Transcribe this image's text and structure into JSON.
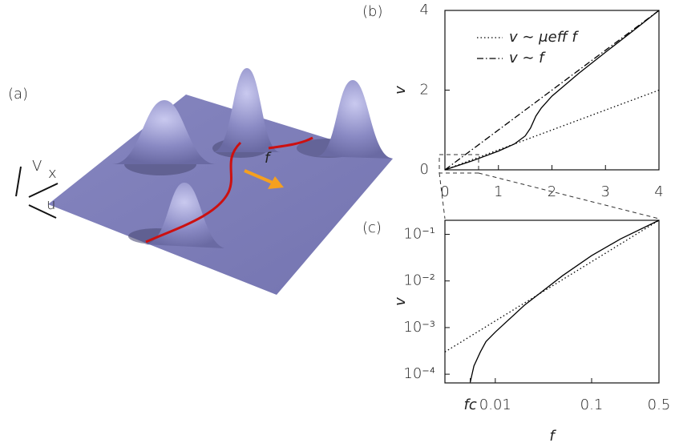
{
  "illustration": {
    "panel_label": "(a)",
    "axis_labels": [
      "V",
      "x",
      "u"
    ],
    "force_label": "f"
  },
  "chart_data": [
    {
      "type": "line",
      "panel_label": "(b)",
      "y_label": "v",
      "xlim": [
        0,
        4
      ],
      "ylim": [
        0,
        4
      ],
      "xticks": [
        0,
        1,
        2,
        3,
        4
      ],
      "yticks": [
        0,
        2,
        4
      ],
      "log_x": false,
      "log_y": false,
      "legend": "upper left",
      "series": [
        {
          "name": "v ∼ μeff f",
          "color": "#000000",
          "style": "dotted",
          "x": [
            0,
            4
          ],
          "values": [
            0,
            2
          ]
        },
        {
          "name": "v ∼ f",
          "color": "#000000",
          "style": "dashdot",
          "x": [
            0,
            4
          ],
          "values": [
            0,
            4
          ]
        },
        {
          "color": "#000000",
          "style": "solid",
          "x": [
            0,
            0.5,
            1,
            1.3,
            1.5,
            1.6,
            1.7,
            1.8,
            2,
            2.5,
            3,
            3.5,
            4
          ],
          "values": [
            0,
            0.22,
            0.47,
            0.65,
            0.85,
            1.05,
            1.35,
            1.55,
            1.85,
            2.42,
            2.95,
            3.47,
            4
          ]
        }
      ]
    },
    {
      "type": "line",
      "panel_label": "(c)",
      "x_label": "f",
      "y_label": "v",
      "xlim": [
        0.003,
        0.5
      ],
      "ylim": [
        6.5e-05,
        0.2
      ],
      "xticks": [
        {
          "value": 0.0055,
          "label": "fc"
        },
        0.01,
        0.1,
        0.5
      ],
      "yticks": [
        {
          "value": 0.1,
          "label": "10⁻¹"
        },
        {
          "value": 0.01,
          "label": "10⁻²"
        },
        {
          "value": 0.001,
          "label": "10⁻³"
        },
        {
          "value": 0.0001,
          "label": "10⁻⁴"
        }
      ],
      "log_x": true,
      "log_y": true,
      "series": [
        {
          "color": "#000000",
          "style": "dotted",
          "x": [
            0.003,
            0.5
          ],
          "values": [
            0.0003,
            0.2
          ]
        },
        {
          "color": "#000000",
          "style": "solid",
          "x": [
            0.0055,
            0.006,
            0.007,
            0.008,
            0.01,
            0.02,
            0.05,
            0.1,
            0.2,
            0.5
          ],
          "values": [
            6.8e-05,
            0.00015,
            0.0003,
            0.0005,
            0.0008,
            0.003,
            0.013,
            0.035,
            0.08,
            0.2
          ]
        }
      ]
    }
  ]
}
